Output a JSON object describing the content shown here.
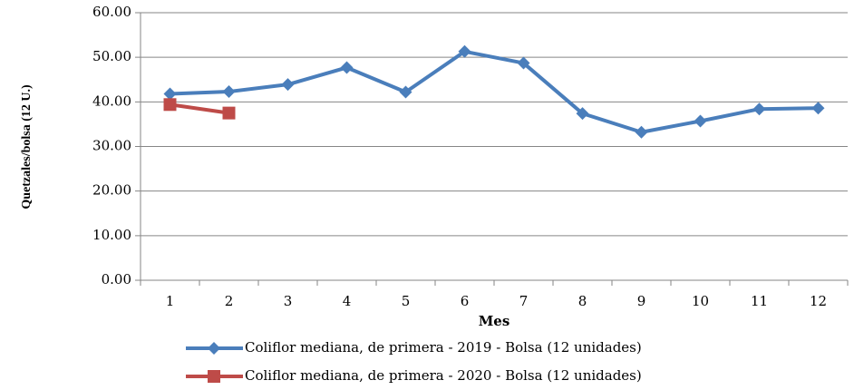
{
  "chart_data": {
    "type": "line",
    "categories": [
      "1",
      "2",
      "3",
      "4",
      "5",
      "6",
      "7",
      "8",
      "9",
      "10",
      "11",
      "12"
    ],
    "series": [
      {
        "name": "Coliflor mediana, de primera - 2019 - Bolsa (12 unidades)",
        "color": "#4a7ebb",
        "marker": "diamond",
        "values": [
          41.8,
          42.3,
          43.9,
          47.7,
          42.2,
          51.3,
          48.7,
          37.4,
          33.2,
          35.7,
          38.4,
          38.6
        ]
      },
      {
        "name": "Coliflor mediana, de primera - 2020 - Bolsa (12 unidades)",
        "color": "#be4b48",
        "marker": "square",
        "values": [
          39.4,
          37.5,
          null,
          null,
          null,
          null,
          null,
          null,
          null,
          null,
          null,
          null
        ]
      }
    ],
    "xlabel": "Mes",
    "ylabel": "Quetzales/bolsa (12 U.)",
    "ylim": [
      0,
      60
    ],
    "yticks": [
      {
        "value": 0,
        "label": "0.00"
      },
      {
        "value": 10,
        "label": "10.00"
      },
      {
        "value": 20,
        "label": "20.00"
      },
      {
        "value": 30,
        "label": "30.00"
      },
      {
        "value": 40,
        "label": "40.00"
      },
      {
        "value": 50,
        "label": "50.00"
      },
      {
        "value": 60,
        "label": "60.00"
      }
    ],
    "grid": true,
    "legend": "bottom"
  }
}
